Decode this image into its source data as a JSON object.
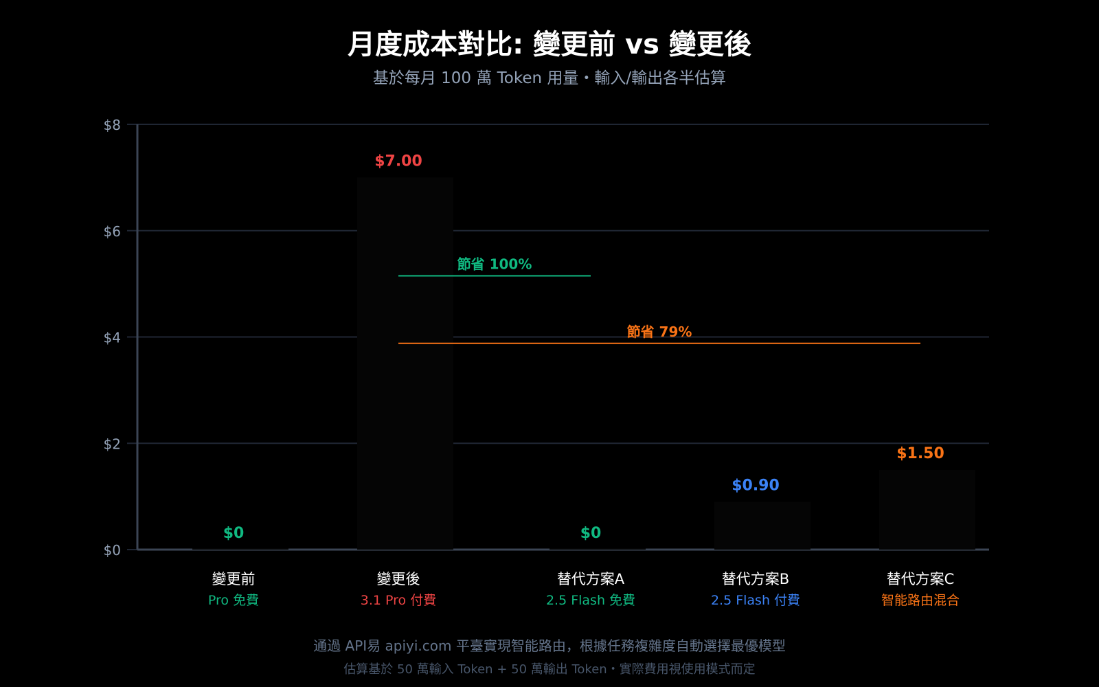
{
  "title": "月度成本對比: 變更前 vs 變更後",
  "subtitle": "基於每月 100 萬 Token 用量・輸入/輸出各半估算",
  "footer": {
    "line1": "通過 API易 apiyi.com 平臺實現智能路由，根據任務複雜度自動選擇最優模型",
    "line2": "估算基於 50 萬輸入 Token + 50 萬輸出 Token・實際費用視使用模式而定"
  },
  "colors": {
    "red": "#ef4444",
    "green": "#10b981",
    "blue": "#3b82f6",
    "orange": "#f97316",
    "grid": "#1f2633",
    "axis": "#3b4555",
    "tick": "#94a3b8"
  },
  "chart_data": {
    "type": "bar",
    "ylim": [
      0,
      8
    ],
    "yticks": [
      "$0",
      "$2",
      "$4",
      "$6",
      "$8"
    ],
    "ytick_values": [
      0,
      2,
      4,
      6,
      8
    ],
    "grid": true,
    "categories": [
      "變更前",
      "變更後",
      "替代方案A",
      "替代方案B",
      "替代方案C"
    ],
    "sublabels": [
      "Pro 免費",
      "3.1 Pro 付費",
      "2.5 Flash 免費",
      "2.5 Flash 付費",
      "智能路由混合"
    ],
    "values": [
      0,
      7.0,
      0,
      0.9,
      1.5
    ],
    "value_labels": [
      "$0",
      "$7.00",
      "$0",
      "$0.90",
      "$1.50"
    ],
    "label_colors": [
      "#10b981",
      "#ef4444",
      "#10b981",
      "#3b82f6",
      "#f97316"
    ],
    "annotations": [
      {
        "text": "節省 100%",
        "from": 1,
        "to": 2,
        "y": 5.15,
        "color": "#10b981"
      },
      {
        "text": "節省 79%",
        "from": 1,
        "to": 4,
        "y": 3.88,
        "color": "#f97316"
      }
    ]
  }
}
